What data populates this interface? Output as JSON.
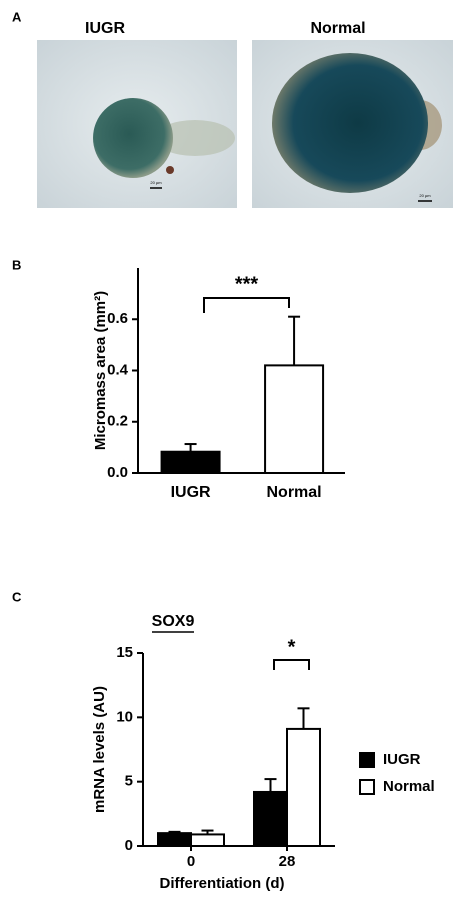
{
  "images": {
    "label": "A",
    "captions": [
      "IUGR",
      "Normal"
    ],
    "scale_bars": [
      "20 µm",
      "20 µm"
    ]
  },
  "chart_data": [
    {
      "label": "B",
      "type": "bar",
      "ylabel": "Micromass area (mm²)",
      "categories": [
        "IUGR",
        "Normal"
      ],
      "values": [
        0.083,
        0.42
      ],
      "errors": [
        0.03,
        0.19
      ],
      "colors": [
        "#000000",
        "#ffffff"
      ],
      "ylim": [
        0,
        0.8
      ],
      "yticks": [
        {
          "value": 0,
          "label": "0.0"
        },
        0.2,
        0.4,
        0.6
      ],
      "annotation": "***"
    },
    {
      "label": "C",
      "type": "grouped-bar",
      "title": "SOX9",
      "ylabel": "mRNA levels (AU)",
      "xlabel": "Differentiation (d)",
      "categories": [
        "0",
        "28"
      ],
      "series": [
        {
          "name": "IUGR",
          "color": "#000000",
          "values": [
            1.0,
            4.2
          ],
          "errors": [
            0.1,
            1.0
          ]
        },
        {
          "name": "Normal",
          "color": "#ffffff",
          "values": [
            0.9,
            9.1
          ],
          "errors": [
            0.3,
            1.6
          ]
        }
      ],
      "ylim": [
        0,
        15
      ],
      "yticks": [
        0,
        5,
        10,
        15
      ],
      "annotation": "*"
    }
  ]
}
